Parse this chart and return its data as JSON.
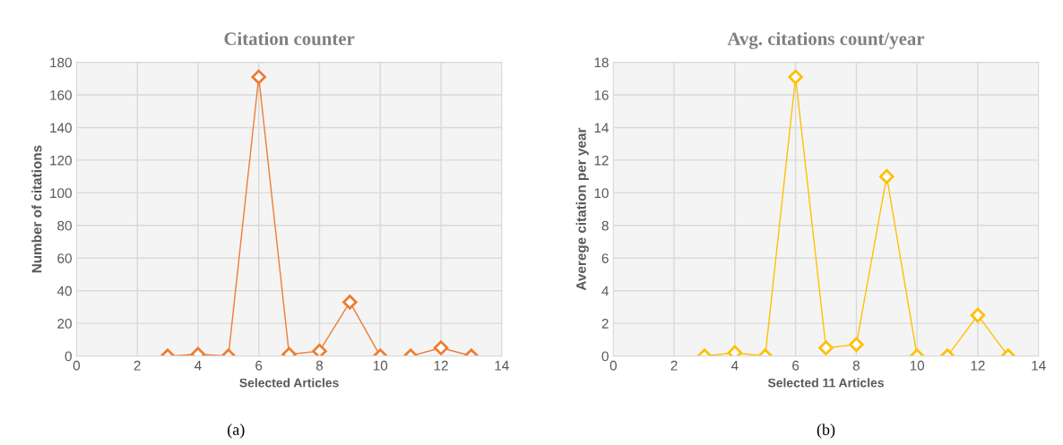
{
  "chart_data": [
    {
      "type": "line",
      "title": "Citation counter",
      "xlabel": "Selected Articles",
      "ylabel": "Number of citations",
      "x": [
        3,
        4,
        5,
        6,
        7,
        8,
        9,
        10,
        11,
        12,
        13
      ],
      "series": [
        {
          "color": "#ed7d31",
          "values": [
            0,
            1,
            0,
            171,
            1,
            3,
            33,
            0,
            0,
            5,
            0
          ]
        }
      ],
      "xlim": [
        0,
        14
      ],
      "xticks": [
        0,
        2,
        4,
        6,
        8,
        10,
        12,
        14
      ],
      "ylim": [
        0,
        180
      ],
      "yticks": [
        0,
        20,
        40,
        60,
        80,
        100,
        120,
        140,
        160,
        180
      ],
      "grid": true,
      "marker": "diamond",
      "line_style": "solid",
      "annotations": [
        "(a)"
      ]
    },
    {
      "type": "line",
      "title": "Avg. citations count/year",
      "xlabel": "Selected 11 Articles",
      "ylabel": "Averege citation per year",
      "x": [
        3,
        4,
        5,
        6,
        7,
        8,
        9,
        10,
        11,
        12,
        13
      ],
      "series": [
        {
          "color": "#ffc000",
          "values": [
            0,
            0.2,
            0,
            17.1,
            0.5,
            0.7,
            11,
            0,
            0,
            2.5,
            0
          ]
        }
      ],
      "xlim": [
        0,
        14
      ],
      "xticks": [
        0,
        2,
        4,
        6,
        8,
        10,
        12,
        14
      ],
      "ylim": [
        0,
        18
      ],
      "yticks": [
        0,
        2,
        4,
        6,
        8,
        10,
        12,
        14,
        16,
        18
      ],
      "grid": true,
      "marker": "diamond",
      "line_style": "solid",
      "annotations": [
        "(b)"
      ]
    }
  ]
}
